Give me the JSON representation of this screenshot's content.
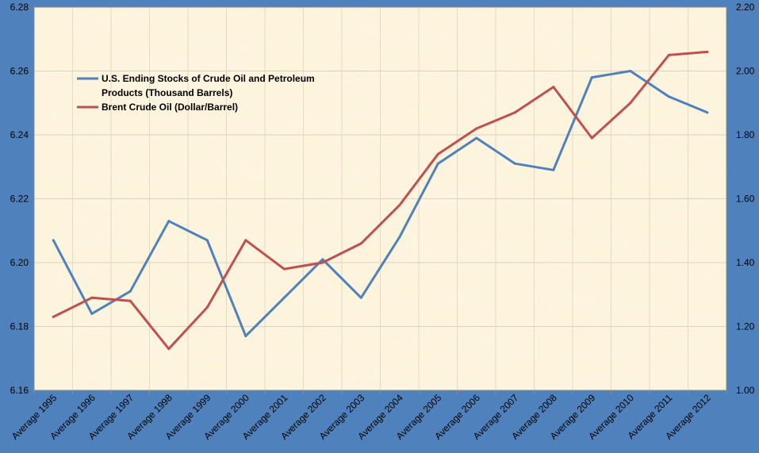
{
  "chart_data": {
    "type": "line",
    "title": "",
    "xlabel": "",
    "ylabel": "",
    "categories": [
      "Average 1995",
      "Average 1996",
      "Average 1997",
      "Average 1998",
      "Average 1999",
      "Average 2000",
      "Average 2001",
      "Average 2002",
      "Average 2003",
      "Average 2004",
      "Average 2005",
      "Average 2006",
      "Average 2007",
      "Average 2008",
      "Average 2009",
      "Average 2010",
      "Average 2011",
      "Average 2012"
    ],
    "y_left": {
      "lim": [
        6.16,
        6.28
      ],
      "ticks": [
        "6.16",
        "6.18",
        "6.20",
        "6.22",
        "6.24",
        "6.26",
        "6.28"
      ]
    },
    "y_right": {
      "lim": [
        1.0,
        2.2
      ],
      "ticks": [
        "1.00",
        "1.20",
        "1.40",
        "1.60",
        "1.80",
        "2.00",
        "2.20"
      ]
    },
    "grid": true,
    "legend_position": "top-left",
    "legend": [
      {
        "lines": [
          "U.S. Ending Stocks of Crude Oil and Petroleum",
          "Products (Thousand Barrels)"
        ]
      },
      {
        "lines": [
          "Brent Crude Oil (Dollar/Barrel)"
        ]
      }
    ],
    "series": [
      {
        "name": "U.S. Ending Stocks of Crude Oil and Petroleum Products (Thousand Barrels)",
        "axis": "left",
        "color": "#4f81bd",
        "values": [
          6.207,
          6.184,
          6.191,
          6.213,
          6.207,
          6.177,
          6.189,
          6.201,
          6.189,
          6.208,
          6.231,
          6.239,
          6.231,
          6.229,
          6.258,
          6.26,
          6.252,
          6.247
        ]
      },
      {
        "name": "Brent Crude Oil (Dollar/Barrel)",
        "axis": "right",
        "color": "#c0504d",
        "values": [
          1.23,
          1.29,
          1.28,
          1.13,
          1.26,
          1.47,
          1.38,
          1.4,
          1.46,
          1.58,
          1.74,
          1.82,
          1.87,
          1.95,
          1.79,
          1.9,
          2.05,
          2.06
        ]
      }
    ]
  }
}
